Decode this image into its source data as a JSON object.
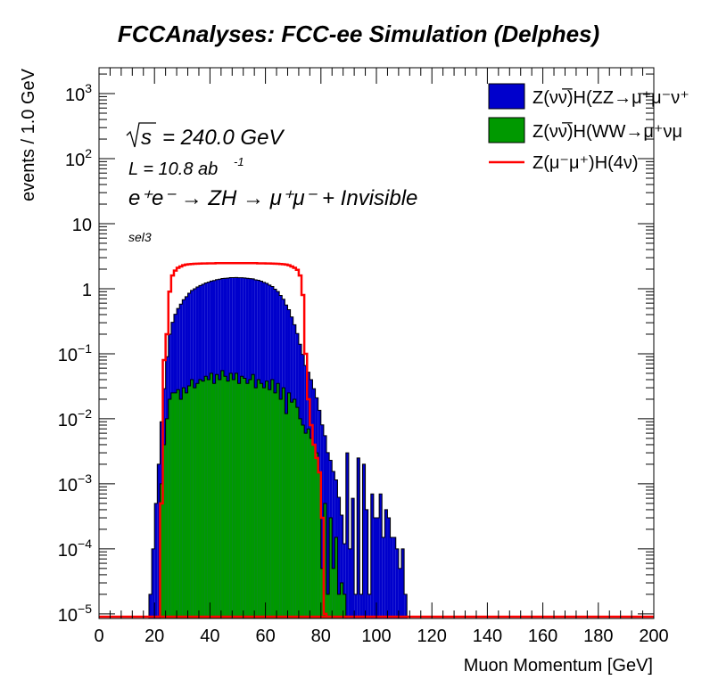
{
  "chart_data": {
    "type": "histogram",
    "title": "FCCAnalyses: FCC-ee Simulation (Delphes)",
    "xlabel": "Muon Momentum [GeV]",
    "ylabel": "events / 1.0 GeV",
    "xlim": [
      0,
      200
    ],
    "ylim": [
      8.5e-06,
      2500
    ],
    "yscale": "log",
    "bin_width": 1.0,
    "xticks": [
      0,
      20,
      40,
      60,
      80,
      100,
      120,
      140,
      160,
      180,
      200
    ],
    "yticks": [
      {
        "value": 1e-05,
        "base": "10",
        "exp": "−5"
      },
      {
        "value": 0.0001,
        "base": "10",
        "exp": "−4"
      },
      {
        "value": 0.001,
        "base": "10",
        "exp": "−3"
      },
      {
        "value": 0.01,
        "base": "10",
        "exp": "−2"
      },
      {
        "value": 0.1,
        "base": "10",
        "exp": "−1"
      },
      {
        "value": 1,
        "base": "1",
        "exp": ""
      },
      {
        "value": 10,
        "base": "10",
        "exp": ""
      },
      {
        "value": 100,
        "base": "10",
        "exp": "2"
      },
      {
        "value": 1000,
        "base": "10",
        "exp": "3"
      }
    ],
    "annotations": {
      "sqrts_symbol": "s",
      "sqrts": "= 240.0 GeV",
      "lumi": "L = 10.8 ab",
      "lumi_exp": "-1",
      "process": "e⁺e⁻ → ZH → μ⁺μ⁻ + Invisible",
      "selection": "sel3"
    },
    "legend_position": "top-right",
    "series": [
      {
        "name": "Z(νν̅)H(ZZ→μ⁺μ⁻ν⁺",
        "style": "stacked-fill",
        "color": "#0000cc",
        "x": [
          18,
          19,
          20,
          21,
          22,
          23,
          24,
          25,
          26,
          27,
          28,
          29,
          30,
          31,
          32,
          33,
          34,
          35,
          36,
          37,
          38,
          39,
          40,
          41,
          42,
          43,
          44,
          45,
          46,
          47,
          48,
          49,
          50,
          51,
          52,
          53,
          54,
          55,
          56,
          57,
          58,
          59,
          60,
          61,
          62,
          63,
          64,
          65,
          66,
          67,
          68,
          69,
          70,
          71,
          72,
          73,
          74,
          75,
          76,
          77,
          78,
          79,
          80,
          81,
          82,
          83,
          84,
          85,
          86,
          87,
          88,
          89,
          90,
          91,
          92,
          93,
          94,
          95,
          96,
          97,
          98,
          99,
          100,
          101,
          102,
          103,
          104,
          105,
          106,
          107,
          108,
          109,
          110
        ],
        "values": [
          2e-05,
          0.0001,
          0.0005,
          0.002,
          0.008,
          0.025,
          0.08,
          0.18,
          0.28,
          0.38,
          0.47,
          0.56,
          0.65,
          0.73,
          0.82,
          0.9,
          0.97,
          1.03,
          1.08,
          1.13,
          1.18,
          1.22,
          1.26,
          1.3,
          1.33,
          1.36,
          1.38,
          1.4,
          1.42,
          1.43,
          1.44,
          1.44,
          1.44,
          1.43,
          1.42,
          1.41,
          1.39,
          1.37,
          1.34,
          1.31,
          1.27,
          1.22,
          1.17,
          1.11,
          1.04,
          0.96,
          0.87,
          0.77,
          0.66,
          0.55,
          0.45,
          0.35,
          0.26,
          0.19,
          0.13,
          0.09,
          0.06,
          0.045,
          0.035,
          0.025,
          0.018,
          0.012,
          0.008,
          0.005,
          0.003,
          0.002,
          0.0015,
          0.001,
          0.0006,
          0.0003,
          0.0001,
          0.003,
          0.0001,
          0.0006,
          2e-05,
          0.0025,
          2e-05,
          0.002,
          0.0004,
          2e-05,
          0.0007,
          0.0003,
          0.0003,
          0.0007,
          0.00015,
          0.0004,
          0.0003,
          0.00015,
          0.00015,
          0.0001,
          5e-05,
          0.0001,
          2e-05
        ]
      },
      {
        "name": "Z(νν̅)H(WW→μ⁺νμ",
        "style": "stacked-fill",
        "color": "#009900",
        "x": [
          22,
          23,
          24,
          25,
          26,
          27,
          28,
          29,
          30,
          31,
          32,
          33,
          34,
          35,
          36,
          37,
          38,
          39,
          40,
          41,
          42,
          43,
          44,
          45,
          46,
          47,
          48,
          49,
          50,
          51,
          52,
          53,
          54,
          55,
          56,
          57,
          58,
          59,
          60,
          61,
          62,
          63,
          64,
          65,
          66,
          67,
          68,
          69,
          70,
          71,
          72,
          73,
          74,
          75,
          76,
          77,
          78,
          79,
          80,
          81,
          82,
          83,
          84,
          85,
          86,
          87,
          88
        ],
        "values": [
          0.001,
          0.004,
          0.01,
          0.02,
          0.025,
          0.025,
          0.028,
          0.02,
          0.03,
          0.025,
          0.032,
          0.04,
          0.03,
          0.035,
          0.04,
          0.038,
          0.045,
          0.04,
          0.05,
          0.035,
          0.048,
          0.04,
          0.055,
          0.045,
          0.038,
          0.05,
          0.04,
          0.05,
          0.035,
          0.045,
          0.042,
          0.035,
          0.04,
          0.048,
          0.03,
          0.04,
          0.035,
          0.03,
          0.038,
          0.028,
          0.04,
          0.025,
          0.035,
          0.02,
          0.03,
          0.012,
          0.025,
          0.018,
          0.02,
          0.015,
          0.01,
          0.008,
          0.006,
          0.007,
          0.005,
          0.004,
          0.003,
          0.0015,
          5e-05,
          0.0005,
          2e-05,
          0.0003,
          5e-05,
          0.00015,
          2e-05,
          3e-05,
          2e-05
        ]
      },
      {
        "name": "Z(μ⁻μ⁺)H(4ν)",
        "style": "line",
        "color": "#ff0000",
        "x": [
          22,
          23,
          24,
          25,
          26,
          27,
          28,
          29,
          30,
          31,
          32,
          33,
          34,
          35,
          36,
          37,
          38,
          39,
          40,
          41,
          42,
          43,
          44,
          45,
          46,
          47,
          48,
          49,
          50,
          51,
          52,
          53,
          54,
          55,
          56,
          57,
          58,
          59,
          60,
          61,
          62,
          63,
          64,
          65,
          66,
          67,
          68,
          69,
          70,
          71,
          72,
          73,
          74,
          75,
          76,
          77,
          78,
          79,
          80,
          81
        ],
        "values": [
          0.0005,
          0.08,
          0.2,
          0.9,
          1.6,
          1.9,
          2.1,
          2.2,
          2.3,
          2.35,
          2.38,
          2.4,
          2.42,
          2.43,
          2.44,
          2.45,
          2.45,
          2.46,
          2.46,
          2.46,
          2.47,
          2.47,
          2.47,
          2.47,
          2.47,
          2.47,
          2.47,
          2.47,
          2.47,
          2.47,
          2.47,
          2.47,
          2.47,
          2.47,
          2.47,
          2.46,
          2.46,
          2.46,
          2.45,
          2.45,
          2.44,
          2.43,
          2.42,
          2.4,
          2.38,
          2.35,
          2.3,
          2.2,
          2.1,
          1.95,
          1.6,
          0.8,
          0.1,
          0.02,
          0.008,
          0.004,
          0.0025,
          0.0015,
          0.0003,
          1e-05
        ]
      }
    ]
  }
}
